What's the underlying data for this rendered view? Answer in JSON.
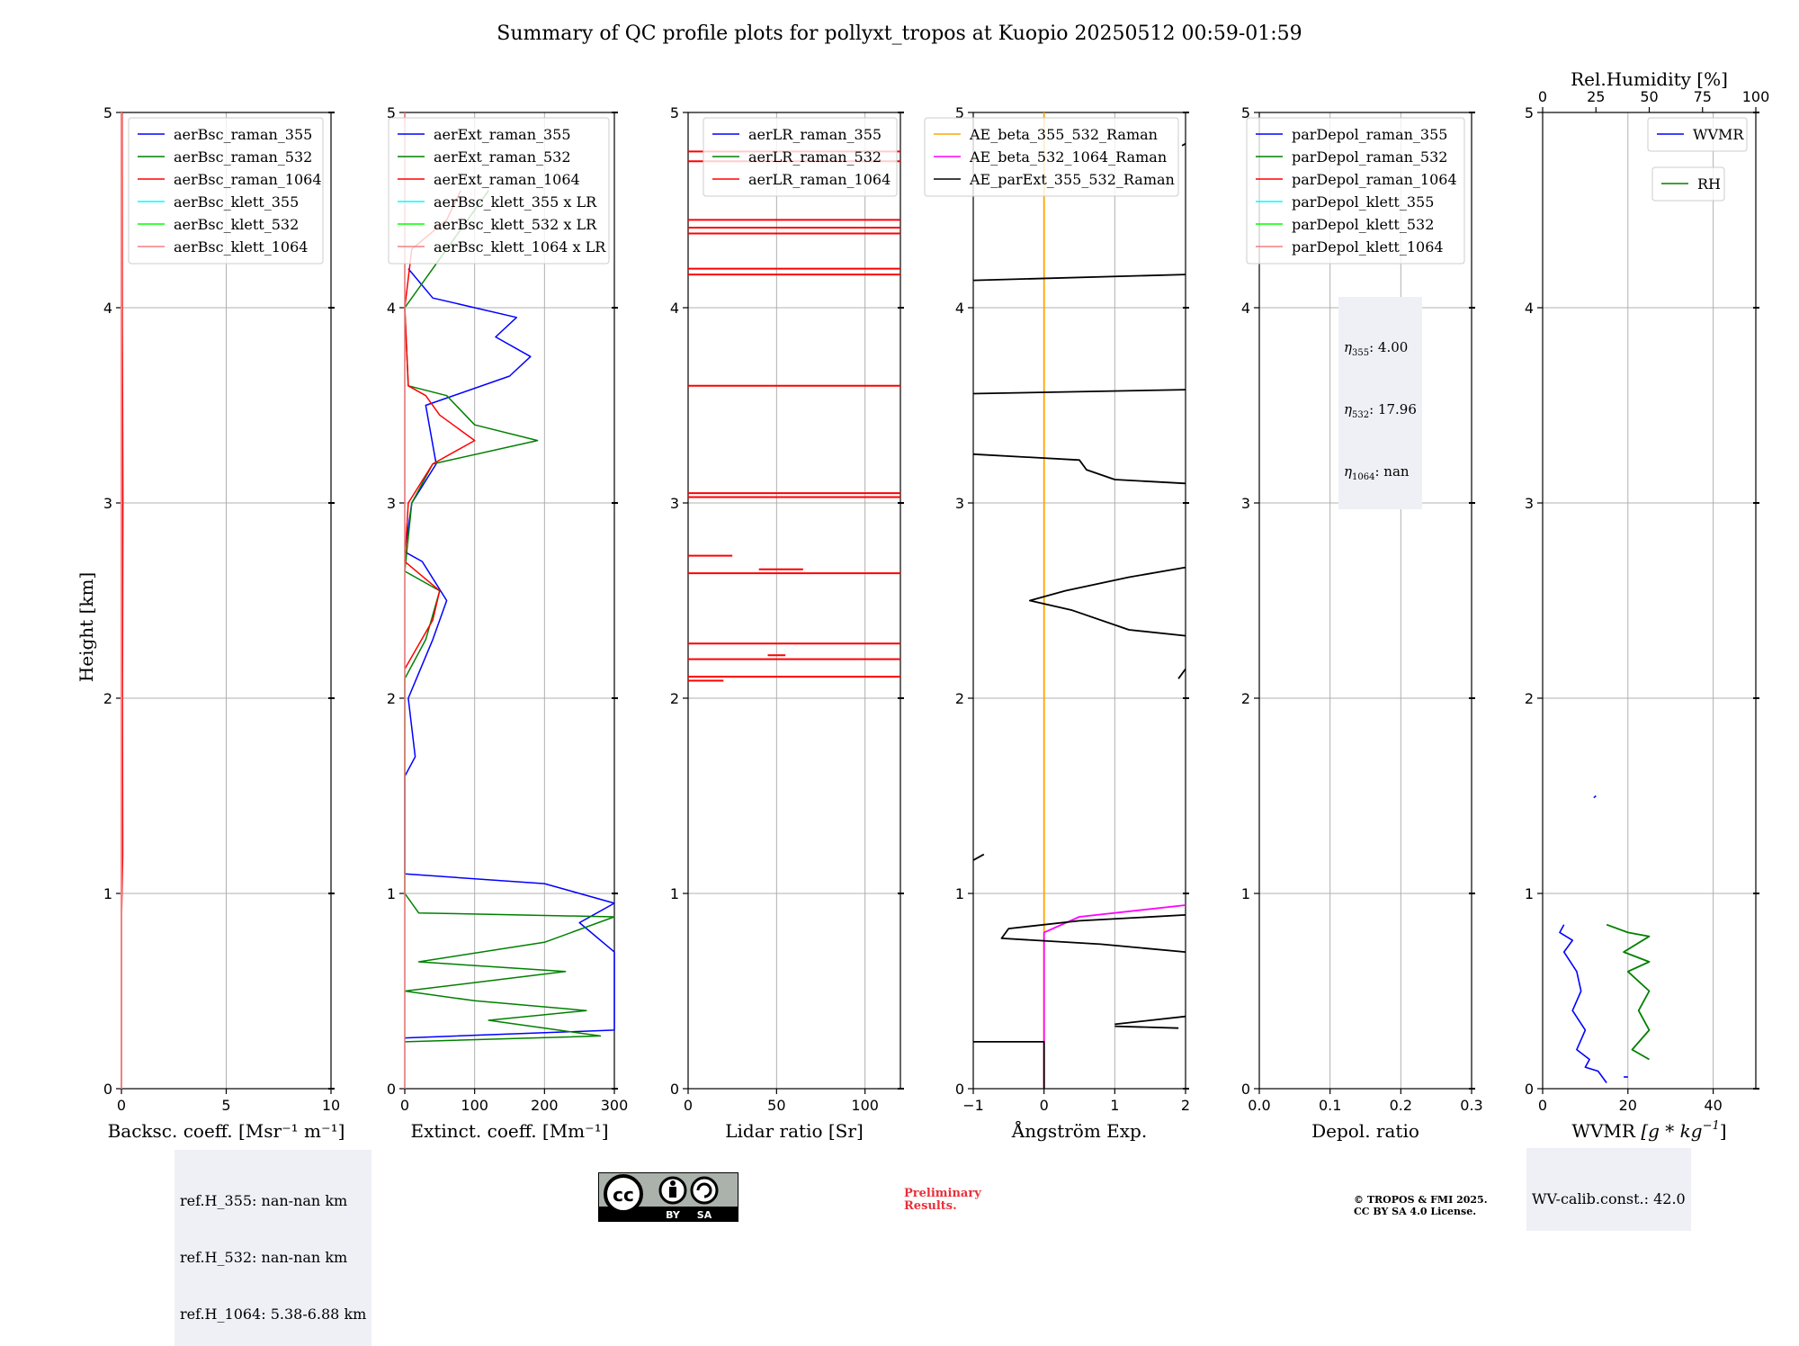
{
  "title": "Summary of QC profile plots for pollyxt_tropos at Kuopio 20250512 00:59-01:59",
  "ylabel": "Height [km]",
  "yticks": [
    "0",
    "1",
    "2",
    "3",
    "4",
    "5"
  ],
  "colors": {
    "blue": "#0000ff",
    "green": "#008000",
    "red": "#ff0000",
    "cyan": "#00ffff",
    "lime": "#00ff00",
    "pink": "#f08080",
    "orange": "#ffa500",
    "magenta": "#ff00ff",
    "black": "#000000",
    "grid": "#b0b0b0"
  },
  "chart_data": [
    {
      "type": "line",
      "xlabel": "Backsc. coeff. [Msr⁻¹ m⁻¹]",
      "xlim": [
        0,
        10
      ],
      "ylim": [
        0,
        5
      ],
      "xticks": [
        "0",
        "5",
        "10"
      ],
      "grid": true,
      "legend_position": "top-right",
      "series": [
        {
          "name": "aerBsc_raman_355",
          "color": "#0000ff",
          "points": []
        },
        {
          "name": "aerBsc_raman_532",
          "color": "#008000",
          "points": []
        },
        {
          "name": "aerBsc_raman_1064",
          "color": "#ff0000",
          "points": [
            [
              0,
              0.9
            ],
            [
              0.05,
              1.2
            ],
            [
              0.04,
              2.0
            ],
            [
              0.06,
              3.0
            ],
            [
              0.03,
              4.0
            ],
            [
              0.02,
              5.0
            ]
          ]
        },
        {
          "name": "aerBsc_klett_355",
          "color": "#00ffff",
          "points": []
        },
        {
          "name": "aerBsc_klett_532",
          "color": "#00ff00",
          "points": []
        },
        {
          "name": "aerBsc_klett_1064",
          "color": "#f08080",
          "points": [
            [
              0,
              0
            ],
            [
              0,
              5
            ]
          ]
        }
      ]
    },
    {
      "type": "line",
      "xlabel": "Extinct. coeff. [Mm⁻¹]",
      "xlim": [
        0,
        300
      ],
      "ylim": [
        0,
        5
      ],
      "xticks": [
        "0",
        "100",
        "200",
        "300"
      ],
      "grid": true,
      "legend_position": "top-left",
      "series": [
        {
          "name": "aerExt_raman_355",
          "color": "#0000ff",
          "points": [
            [
              0,
              0.26
            ],
            [
              300,
              0.3
            ],
            [
              300,
              0.7
            ],
            [
              250,
              0.85
            ],
            [
              300,
              0.95
            ],
            [
              200,
              1.05
            ],
            [
              0,
              1.1
            ],
            [
              0,
              1.6
            ],
            [
              15,
              1.7
            ],
            [
              5,
              2.0
            ],
            [
              40,
              2.3
            ],
            [
              60,
              2.5
            ],
            [
              25,
              2.7
            ],
            [
              0,
              2.75
            ],
            [
              10,
              3.0
            ],
            [
              45,
              3.2
            ],
            [
              30,
              3.5
            ],
            [
              150,
              3.65
            ],
            [
              180,
              3.75
            ],
            [
              130,
              3.85
            ],
            [
              160,
              3.95
            ],
            [
              40,
              4.05
            ],
            [
              5,
              4.2
            ]
          ]
        },
        {
          "name": "aerExt_raman_532",
          "color": "#008000",
          "points": [
            [
              0,
              0.24
            ],
            [
              280,
              0.27
            ],
            [
              120,
              0.35
            ],
            [
              260,
              0.4
            ],
            [
              100,
              0.45
            ],
            [
              0,
              0.5
            ],
            [
              230,
              0.6
            ],
            [
              20,
              0.65
            ],
            [
              200,
              0.75
            ],
            [
              300,
              0.88
            ],
            [
              20,
              0.9
            ],
            [
              0,
              1.0
            ],
            [
              0,
              2.1
            ],
            [
              30,
              2.3
            ],
            [
              50,
              2.55
            ],
            [
              0,
              2.65
            ],
            [
              10,
              3.0
            ],
            [
              40,
              3.2
            ],
            [
              190,
              3.32
            ],
            [
              100,
              3.4
            ],
            [
              60,
              3.55
            ],
            [
              5,
              3.6
            ],
            [
              0,
              4.0
            ],
            [
              60,
              4.3
            ],
            [
              120,
              4.6
            ]
          ]
        },
        {
          "name": "aerExt_raman_1064",
          "color": "#ff0000",
          "points": [
            [
              0,
              2.15
            ],
            [
              40,
              2.4
            ],
            [
              50,
              2.55
            ],
            [
              0,
              2.7
            ],
            [
              5,
              3.0
            ],
            [
              40,
              3.2
            ],
            [
              100,
              3.32
            ],
            [
              50,
              3.45
            ],
            [
              30,
              3.55
            ],
            [
              5,
              3.6
            ],
            [
              0,
              4.0
            ],
            [
              10,
              4.3
            ],
            [
              60,
              4.45
            ],
            [
              80,
              4.6
            ]
          ]
        },
        {
          "name": "aerBsc_klett_355 x LR",
          "color": "#00ffff",
          "points": []
        },
        {
          "name": "aerBsc_klett_532 x LR",
          "color": "#00ff00",
          "points": []
        },
        {
          "name": "aerBsc_klett_1064 x LR",
          "color": "#f08080",
          "points": [
            [
              0,
              0
            ],
            [
              0,
              5
            ]
          ]
        }
      ]
    },
    {
      "type": "line",
      "xlabel": "Lidar ratio [Sr]",
      "xlim": [
        0,
        120
      ],
      "ylim": [
        0,
        5
      ],
      "xticks": [
        "0",
        "50",
        "100"
      ],
      "grid": true,
      "legend_position": "top-left",
      "series": [
        {
          "name": "aerLR_raman_355",
          "color": "#0000ff",
          "points": []
        },
        {
          "name": "aerLR_raman_532",
          "color": "#008000",
          "points": []
        },
        {
          "name": "aerLR_raman_1064",
          "color": "#ff0000",
          "hlines": [
            [
              0,
              20,
              2.09
            ],
            [
              0,
              120,
              2.11
            ],
            [
              0,
              120,
              2.2
            ],
            [
              45,
              55,
              2.22
            ],
            [
              0,
              120,
              2.28
            ],
            [
              0,
              120,
              2.64
            ],
            [
              40,
              65,
              2.66
            ],
            [
              0,
              25,
              2.73
            ],
            [
              0,
              120,
              3.03
            ],
            [
              0,
              120,
              3.05
            ],
            [
              0,
              120,
              3.6
            ],
            [
              0,
              120,
              4.17
            ],
            [
              0,
              120,
              4.2
            ],
            [
              0,
              120,
              4.38
            ],
            [
              0,
              120,
              4.41
            ],
            [
              0,
              120,
              4.45
            ],
            [
              0,
              120,
              4.75
            ],
            [
              0,
              120,
              4.8
            ]
          ]
        }
      ]
    },
    {
      "type": "line",
      "xlabel": "Ångström Exp.",
      "xlim": [
        -1,
        2
      ],
      "ylim": [
        0,
        5
      ],
      "xticks": [
        "−1",
        "0",
        "1",
        "2"
      ],
      "grid": true,
      "legend_position": "top-left",
      "series": [
        {
          "name": "AE_beta_355_532_Raman",
          "color": "#ffa500",
          "points": [
            [
              0,
              0
            ],
            [
              0,
              5
            ]
          ]
        },
        {
          "name": "AE_beta_532_1064_Raman",
          "color": "#ff00ff",
          "points": [
            [
              0,
              0
            ],
            [
              0,
              0.8
            ],
            [
              0.5,
              0.88
            ],
            [
              2,
              0.94
            ]
          ]
        },
        {
          "name": "AE_parExt_355_532_Raman",
          "color": "#000000",
          "points": [
            [
              -1,
              0.24
            ],
            [
              0,
              0.24
            ],
            [
              0,
              0
            ]
          ]
        }
      ]
    }
  ],
  "ae_black_segments": [
    [
      [
        1.0,
        0.32
      ],
      [
        1.9,
        0.31
      ]
    ],
    [
      [
        1.0,
        0.33
      ],
      [
        2.0,
        0.37
      ]
    ],
    [
      [
        2.0,
        0.7
      ],
      [
        0.8,
        0.74
      ],
      [
        -0.6,
        0.77
      ],
      [
        -0.5,
        0.82
      ],
      [
        0.5,
        0.86
      ],
      [
        2.0,
        0.89
      ]
    ],
    [
      [
        -1,
        1.17
      ],
      [
        -0.85,
        1.2
      ]
    ],
    [
      [
        1.9,
        2.1
      ],
      [
        2.0,
        2.15
      ]
    ],
    [
      [
        2.0,
        2.32
      ],
      [
        1.2,
        2.35
      ],
      [
        0.4,
        2.45
      ],
      [
        -0.2,
        2.5
      ],
      [
        0.3,
        2.55
      ],
      [
        1.2,
        2.62
      ],
      [
        2.0,
        2.67
      ]
    ],
    [
      [
        -1,
        3.25
      ],
      [
        0.5,
        3.22
      ],
      [
        0.6,
        3.17
      ],
      [
        1.0,
        3.12
      ],
      [
        2.0,
        3.1
      ]
    ],
    [
      [
        -1,
        3.56
      ],
      [
        2.0,
        3.58
      ]
    ],
    [
      [
        -1,
        4.14
      ],
      [
        2.0,
        4.17
      ]
    ],
    [
      [
        1.95,
        4.83
      ],
      [
        2.0,
        4.84
      ]
    ]
  ],
  "depol": {
    "xlabel": "Depol. ratio",
    "xlim": [
      0,
      0.3
    ],
    "xticks": [
      "0.0",
      "0.1",
      "0.2",
      "0.3"
    ],
    "legend": [
      {
        "name": "parDepol_raman_355",
        "color": "#0000ff"
      },
      {
        "name": "parDepol_raman_532",
        "color": "#008000"
      },
      {
        "name": "parDepol_raman_1064",
        "color": "#ff0000"
      },
      {
        "name": "parDepol_klett_355",
        "color": "#00ffff"
      },
      {
        "name": "parDepol_klett_532",
        "color": "#00ff00"
      },
      {
        "name": "parDepol_klett_1064",
        "color": "#f08080"
      }
    ],
    "eta": [
      {
        "sub": "355",
        "value": "4.00"
      },
      {
        "sub": "532",
        "value": "17.96"
      },
      {
        "sub": "1064",
        "value": "nan"
      }
    ]
  },
  "wv": {
    "xlabel": "WVMR [g * kg⁻¹]",
    "xlabel_main": "WVMR ",
    "xlabel_unit": "[g * kg",
    "xlabel_exp": "−1",
    "xlabel_end": "]",
    "xlim": [
      0,
      50
    ],
    "xticks": [
      "0",
      "20",
      "40"
    ],
    "top_label": "Rel.Humidity [%]",
    "top_xlim": [
      0,
      100
    ],
    "top_xticks": [
      "0",
      "25",
      "50",
      "75",
      "100"
    ],
    "series": [
      {
        "name": "WVMR",
        "color": "#0000ff",
        "points": [
          [
            15,
            0.03
          ],
          [
            13,
            0.09
          ],
          [
            10,
            0.11
          ],
          [
            11,
            0.15
          ],
          [
            8,
            0.2
          ],
          [
            10,
            0.3
          ],
          [
            7,
            0.4
          ],
          [
            9,
            0.5
          ],
          [
            8,
            0.6
          ],
          [
            5,
            0.7
          ],
          [
            7,
            0.76
          ],
          [
            4,
            0.8
          ],
          [
            5,
            0.84
          ]
        ],
        "extra": [
          [
            [
              12,
              1.49
            ],
            [
              12.5,
              1.5
            ]
          ],
          [
            [
              19,
              0.06
            ],
            [
              20,
              0.06
            ]
          ]
        ]
      },
      {
        "name": "RH",
        "color": "#008000",
        "points": [
          [
            50,
            0.15
          ],
          [
            42,
            0.2
          ],
          [
            50,
            0.3
          ],
          [
            45,
            0.4
          ],
          [
            50,
            0.5
          ],
          [
            40,
            0.6
          ],
          [
            50,
            0.65
          ],
          [
            38,
            0.7
          ],
          [
            50,
            0.78
          ],
          [
            40,
            0.8
          ],
          [
            30,
            0.84
          ]
        ]
      }
    ],
    "calib": "WV-calib.const.: 42.0"
  },
  "ref_heights": [
    "ref.H_355: nan-nan km",
    "ref.H_532: nan-nan km",
    "ref.H_1064: 5.38-6.88 km"
  ],
  "license_badge": {
    "icon": "cc-by-sa-icon",
    "by": "BY",
    "sa": "SA"
  },
  "preliminary": [
    "Preliminary",
    "Results."
  ],
  "copyright": [
    "© TROPOS & FMI 2025.",
    "CC BY SA 4.0 License."
  ]
}
